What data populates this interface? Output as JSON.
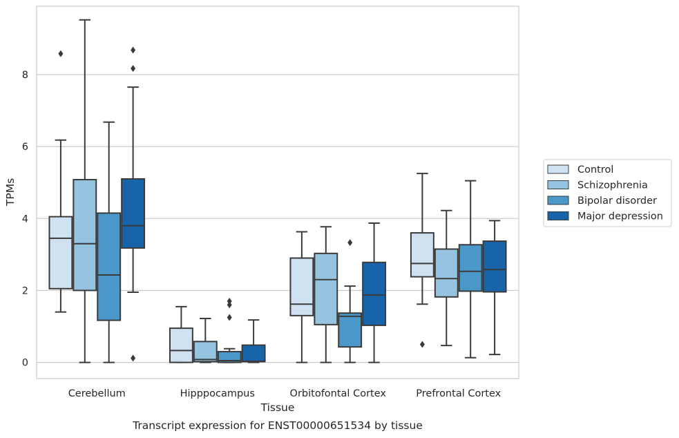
{
  "chart_data": {
    "type": "box",
    "title": "",
    "caption": "Transcript expression for ENST00000651534 by tissue",
    "xlabel": "Tissue",
    "ylabel": "TPMs",
    "ylim": [
      -0.45,
      9.9
    ],
    "yticks": [
      0,
      2,
      4,
      6,
      8
    ],
    "grid": "horizontal",
    "legend_position": "right",
    "categories": [
      "Cerebellum",
      "Hipppocampus",
      "Orbitofontal Cortex",
      "Prefrontal Cortex"
    ],
    "series": [
      {
        "name": "Control",
        "color": "#d0e1f2",
        "boxes": [
          {
            "whisker_low": 1.4,
            "q1": 2.05,
            "median": 3.45,
            "q3": 4.05,
            "whisker_high": 6.18,
            "outliers": [
              8.58
            ]
          },
          {
            "whisker_low": 0.0,
            "q1": 0.0,
            "median": 0.33,
            "q3": 0.95,
            "whisker_high": 1.55,
            "outliers": []
          },
          {
            "whisker_low": 0.0,
            "q1": 1.3,
            "median": 1.62,
            "q3": 2.9,
            "whisker_high": 3.63,
            "outliers": []
          },
          {
            "whisker_low": 1.62,
            "q1": 2.38,
            "median": 2.75,
            "q3": 3.6,
            "whisker_high": 5.25,
            "outliers": [
              0.5
            ]
          }
        ]
      },
      {
        "name": "Schizophrenia",
        "color": "#94c4df",
        "boxes": [
          {
            "whisker_low": 0.0,
            "q1": 2.0,
            "median": 3.3,
            "q3": 5.08,
            "whisker_high": 9.52,
            "outliers": []
          },
          {
            "whisker_low": 0.0,
            "q1": 0.02,
            "median": 0.08,
            "q3": 0.58,
            "whisker_high": 1.22,
            "outliers": []
          },
          {
            "whisker_low": 0.0,
            "q1": 1.05,
            "median": 2.3,
            "q3": 3.03,
            "whisker_high": 3.77,
            "outliers": []
          },
          {
            "whisker_low": 0.47,
            "q1": 1.82,
            "median": 2.33,
            "q3": 3.15,
            "whisker_high": 4.22,
            "outliers": []
          }
        ]
      },
      {
        "name": "Bipolar disorder",
        "color": "#4a98c9",
        "boxes": [
          {
            "whisker_low": 0.0,
            "q1": 1.17,
            "median": 2.43,
            "q3": 4.15,
            "whisker_high": 6.68,
            "outliers": []
          },
          {
            "whisker_low": 0.0,
            "q1": 0.0,
            "median": 0.05,
            "q3": 0.3,
            "whisker_high": 0.38,
            "outliers": [
              1.25,
              1.6,
              1.7
            ]
          },
          {
            "whisker_low": 0.0,
            "q1": 0.43,
            "median": 1.28,
            "q3": 1.37,
            "whisker_high": 2.12,
            "outliers": [
              3.33
            ]
          },
          {
            "whisker_low": 0.13,
            "q1": 1.98,
            "median": 2.53,
            "q3": 3.27,
            "whisker_high": 5.05,
            "outliers": []
          }
        ]
      },
      {
        "name": "Major depression",
        "color": "#1764ab",
        "boxes": [
          {
            "whisker_low": 1.95,
            "q1": 3.18,
            "median": 3.8,
            "q3": 5.1,
            "whisker_high": 7.65,
            "outliers": [
              0.12,
              8.17,
              8.68
            ]
          },
          {
            "whisker_low": 0.0,
            "q1": 0.02,
            "median": 0.03,
            "q3": 0.48,
            "whisker_high": 1.18,
            "outliers": []
          },
          {
            "whisker_low": 0.0,
            "q1": 1.03,
            "median": 1.87,
            "q3": 2.78,
            "whisker_high": 3.87,
            "outliers": []
          },
          {
            "whisker_low": 0.22,
            "q1": 1.96,
            "median": 2.58,
            "q3": 3.37,
            "whisker_high": 3.94,
            "outliers": []
          }
        ]
      }
    ]
  }
}
